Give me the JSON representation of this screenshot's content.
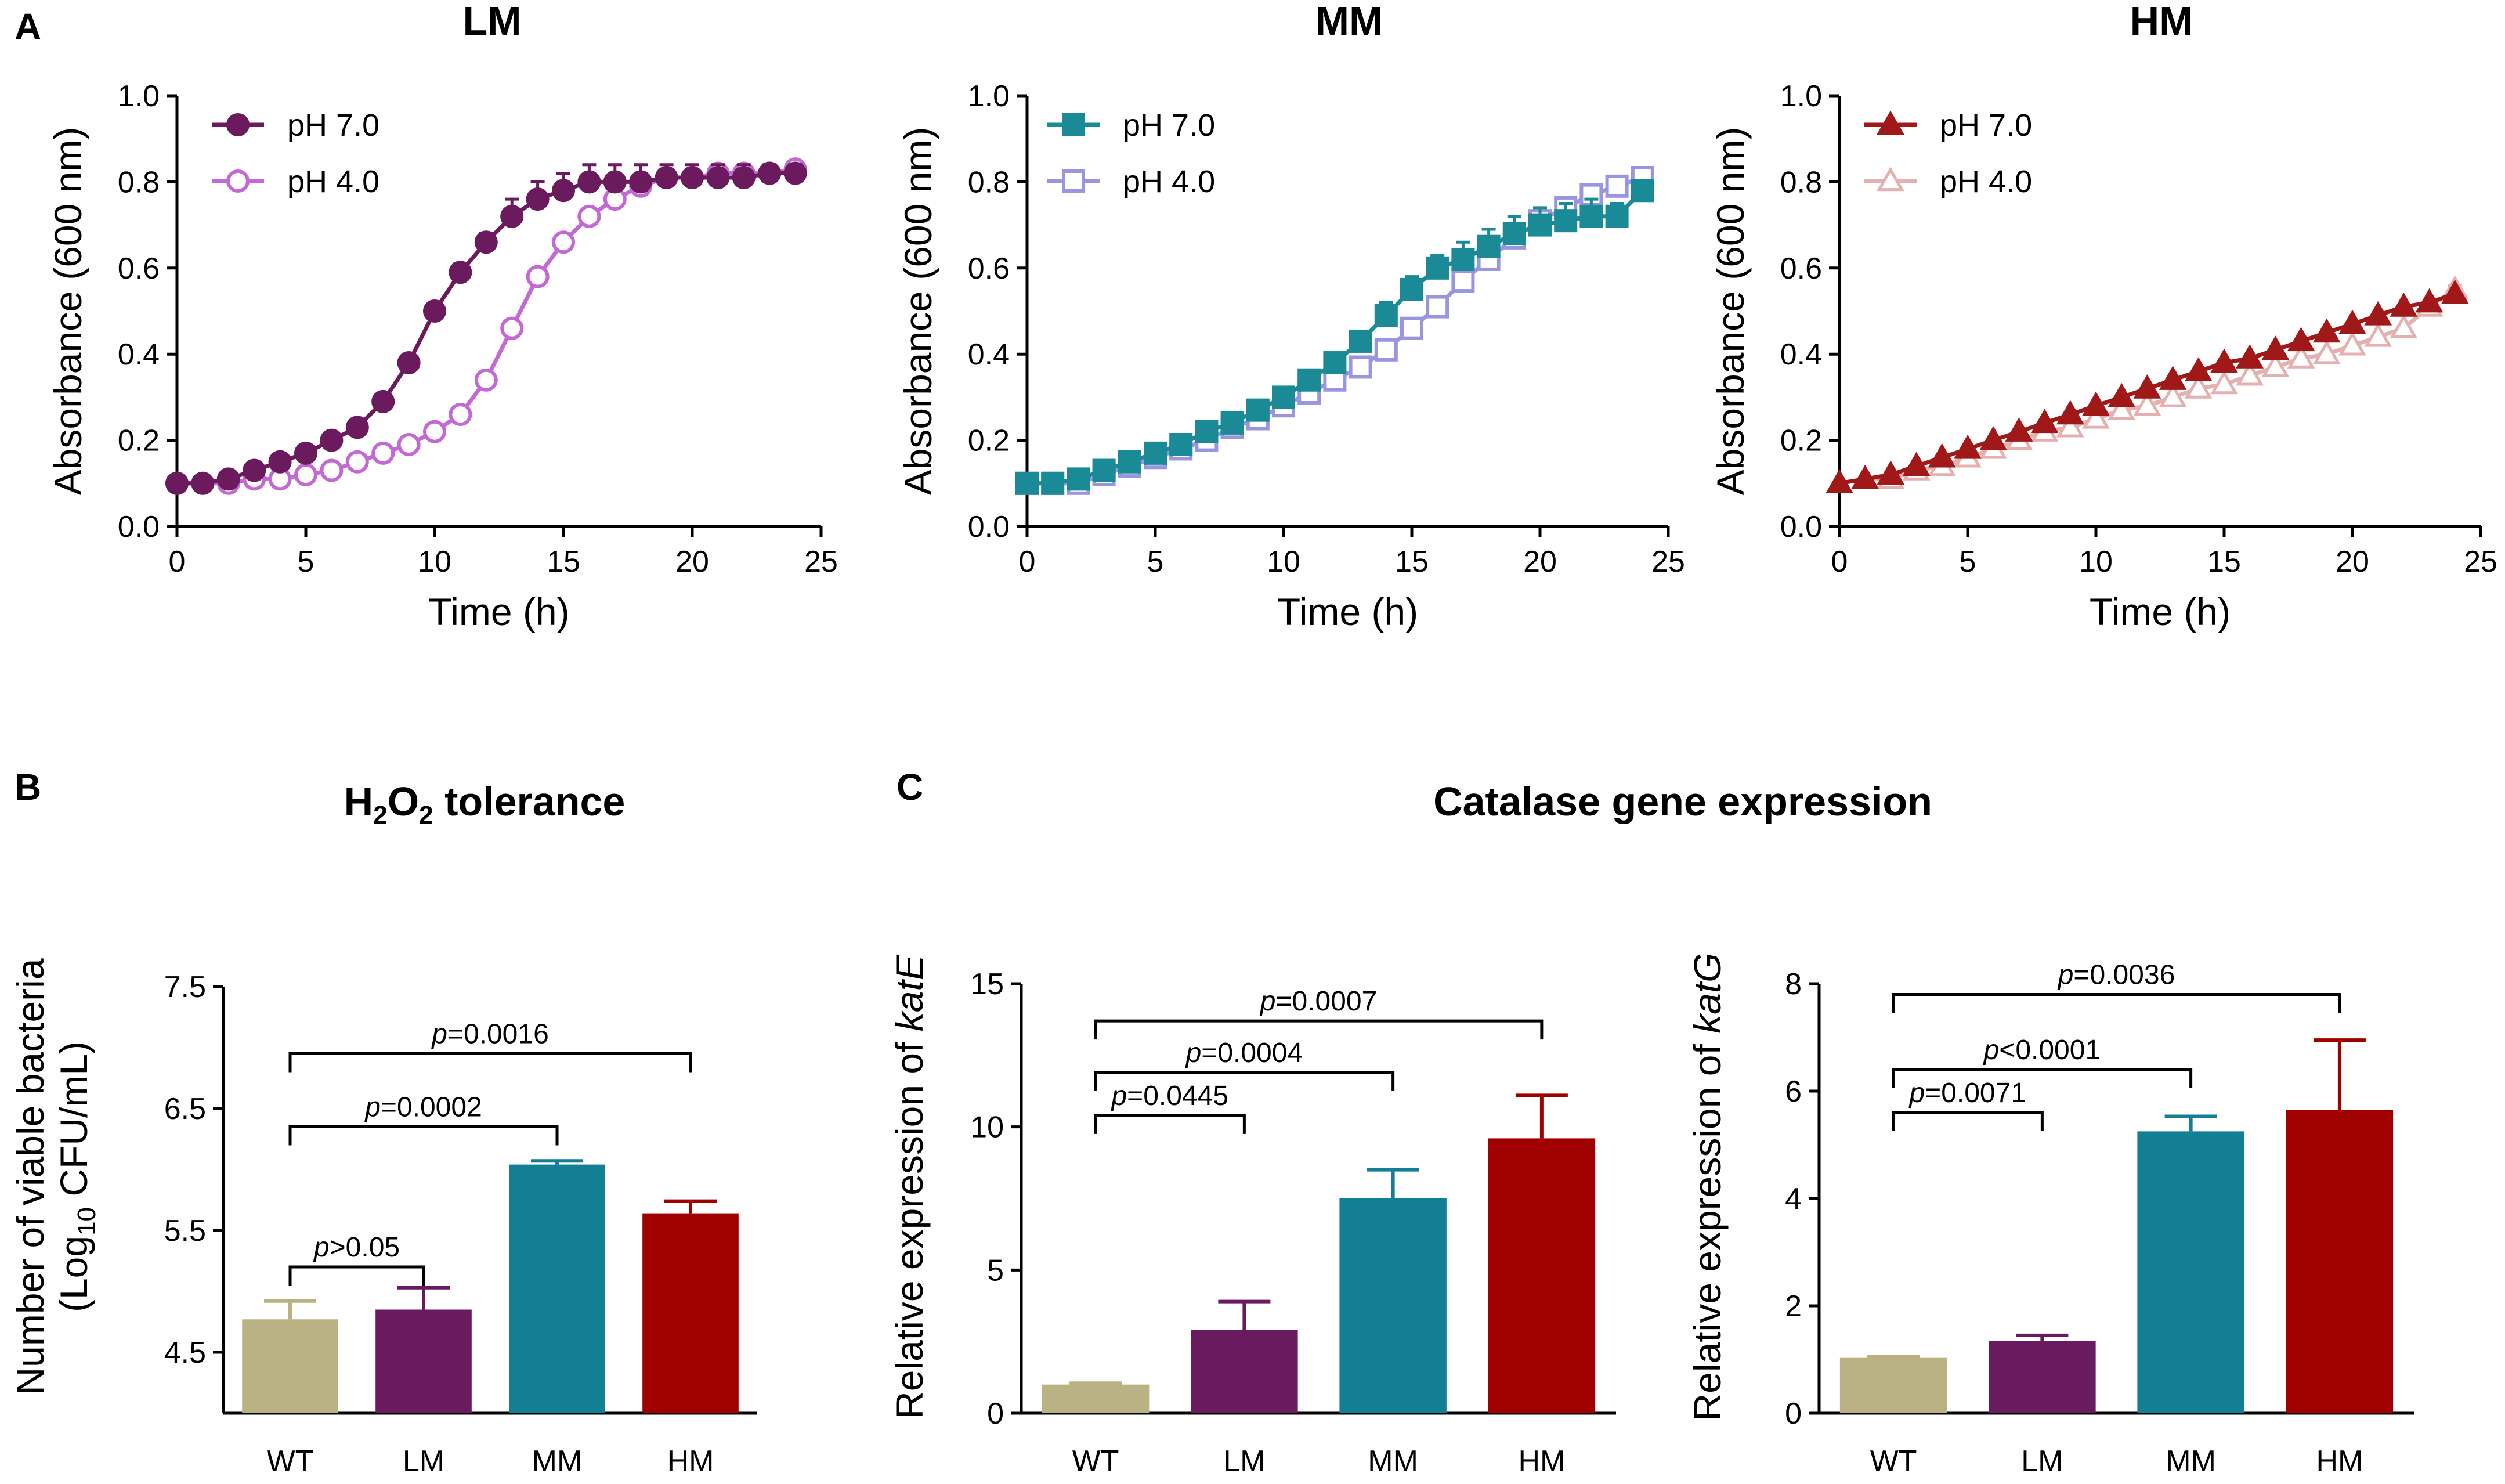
{
  "chart_data": [
    {
      "id": "A-LM",
      "panel": "A",
      "type": "line",
      "title": "LM",
      "xlabel": "Time (h)",
      "ylabel": "Absorbance (600 nm)",
      "xlim": [
        0,
        25
      ],
      "ylim": [
        0,
        1.0
      ],
      "xticks": [
        "0",
        "5",
        "10",
        "15",
        "20",
        "25"
      ],
      "yticks": [
        "0.0",
        "0.2",
        "0.4",
        "0.6",
        "0.8",
        "1.0"
      ],
      "series": [
        {
          "name": "pH 7.0",
          "color": "#6b1a5e",
          "marker": "circle",
          "filled": true,
          "x": [
            0,
            1,
            2,
            3,
            4,
            5,
            6,
            7,
            8,
            9,
            10,
            11,
            12,
            13,
            14,
            15,
            16,
            17,
            18,
            19,
            20,
            21,
            22,
            23,
            24
          ],
          "y": [
            0.1,
            0.1,
            0.11,
            0.13,
            0.15,
            0.17,
            0.2,
            0.23,
            0.29,
            0.38,
            0.5,
            0.59,
            0.66,
            0.72,
            0.76,
            0.78,
            0.8,
            0.8,
            0.8,
            0.81,
            0.81,
            0.81,
            0.81,
            0.82,
            0.82
          ],
          "err": [
            0,
            0,
            0,
            0,
            0,
            0,
            0,
            0,
            0.01,
            0.01,
            0.02,
            0.02,
            0.02,
            0.04,
            0.04,
            0.04,
            0.04,
            0.04,
            0.04,
            0.03,
            0.03,
            0.03,
            0.03,
            0.02,
            0.02
          ]
        },
        {
          "name": "pH 4.0",
          "color": "#c468d6",
          "marker": "circle",
          "filled": false,
          "x": [
            0,
            1,
            2,
            3,
            4,
            5,
            6,
            7,
            8,
            9,
            10,
            11,
            12,
            13,
            14,
            15,
            16,
            17,
            18,
            19,
            20,
            21,
            22,
            23,
            24
          ],
          "y": [
            0.1,
            0.1,
            0.1,
            0.11,
            0.11,
            0.12,
            0.13,
            0.15,
            0.17,
            0.19,
            0.22,
            0.26,
            0.34,
            0.46,
            0.58,
            0.66,
            0.72,
            0.76,
            0.79,
            0.81,
            0.81,
            0.82,
            0.82,
            0.82,
            0.83
          ],
          "err": [
            0,
            0,
            0,
            0,
            0,
            0,
            0,
            0,
            0,
            0,
            0,
            0,
            0,
            0,
            0,
            0,
            0,
            0,
            0,
            0,
            0,
            0,
            0,
            0,
            0
          ]
        }
      ]
    },
    {
      "id": "A-MM",
      "panel": "",
      "type": "line",
      "title": "MM",
      "xlabel": "Time (h)",
      "ylabel": "Absorbance (600 nm)",
      "xlim": [
        0,
        25
      ],
      "ylim": [
        0,
        1.0
      ],
      "xticks": [
        "0",
        "5",
        "10",
        "15",
        "20",
        "25"
      ],
      "yticks": [
        "0.0",
        "0.2",
        "0.4",
        "0.6",
        "0.8",
        "1.0"
      ],
      "series": [
        {
          "name": "pH 7.0",
          "color": "#1a8a96",
          "marker": "square",
          "filled": true,
          "x": [
            0,
            1,
            2,
            3,
            4,
            5,
            6,
            7,
            8,
            9,
            10,
            11,
            12,
            13,
            14,
            15,
            16,
            17,
            18,
            19,
            20,
            21,
            22,
            23,
            24
          ],
          "y": [
            0.1,
            0.1,
            0.11,
            0.13,
            0.15,
            0.17,
            0.19,
            0.22,
            0.24,
            0.27,
            0.3,
            0.34,
            0.38,
            0.43,
            0.49,
            0.55,
            0.6,
            0.62,
            0.65,
            0.68,
            0.7,
            0.71,
            0.72,
            0.72,
            0.78
          ],
          "err": [
            0,
            0,
            0,
            0,
            0,
            0,
            0,
            0,
            0,
            0,
            0.01,
            0.01,
            0.02,
            0.02,
            0.03,
            0.03,
            0.03,
            0.04,
            0.04,
            0.04,
            0.04,
            0.04,
            0.04,
            0.03,
            0.02
          ]
        },
        {
          "name": "pH 4.0",
          "color": "#9a95e0",
          "marker": "square",
          "filled": false,
          "x": [
            0,
            1,
            2,
            3,
            4,
            5,
            6,
            7,
            8,
            9,
            10,
            11,
            12,
            13,
            14,
            15,
            16,
            17,
            18,
            19,
            20,
            21,
            22,
            23,
            24
          ],
          "y": [
            0.1,
            0.1,
            0.1,
            0.12,
            0.14,
            0.16,
            0.18,
            0.2,
            0.23,
            0.25,
            0.28,
            0.31,
            0.34,
            0.37,
            0.41,
            0.46,
            0.51,
            0.57,
            0.62,
            0.67,
            0.71,
            0.74,
            0.77,
            0.79,
            0.81
          ],
          "err": [
            0,
            0,
            0,
            0,
            0,
            0,
            0,
            0,
            0,
            0,
            0,
            0,
            0,
            0,
            0,
            0,
            0,
            0,
            0,
            0,
            0,
            0,
            0,
            0,
            0
          ]
        }
      ]
    },
    {
      "id": "A-HM",
      "panel": "",
      "type": "line",
      "title": "HM",
      "xlabel": "Time (h)",
      "ylabel": "Absorbance (600 nm)",
      "xlim": [
        0,
        25
      ],
      "ylim": [
        0,
        1.0
      ],
      "xticks": [
        "0",
        "5",
        "10",
        "15",
        "20",
        "25"
      ],
      "yticks": [
        "0.0",
        "0.2",
        "0.4",
        "0.6",
        "0.8",
        "1.0"
      ],
      "series": [
        {
          "name": "pH 7.0",
          "color": "#a01818",
          "marker": "triangle",
          "filled": true,
          "x": [
            0,
            1,
            2,
            3,
            4,
            5,
            6,
            7,
            8,
            9,
            10,
            11,
            12,
            13,
            14,
            15,
            16,
            17,
            18,
            19,
            20,
            21,
            22,
            23,
            24
          ],
          "y": [
            0.1,
            0.11,
            0.12,
            0.14,
            0.16,
            0.18,
            0.2,
            0.22,
            0.24,
            0.26,
            0.28,
            0.3,
            0.32,
            0.34,
            0.36,
            0.38,
            0.39,
            0.41,
            0.43,
            0.45,
            0.47,
            0.49,
            0.51,
            0.52,
            0.54
          ],
          "err": [
            0,
            0,
            0,
            0,
            0,
            0,
            0,
            0,
            0,
            0,
            0,
            0,
            0,
            0,
            0,
            0,
            0,
            0,
            0,
            0,
            0,
            0,
            0,
            0,
            0
          ]
        },
        {
          "name": "pH 4.0",
          "color": "#e4b0b0",
          "marker": "triangle",
          "filled": false,
          "x": [
            0,
            1,
            2,
            3,
            4,
            5,
            6,
            7,
            8,
            9,
            10,
            11,
            12,
            13,
            14,
            15,
            16,
            17,
            18,
            19,
            20,
            21,
            22,
            23,
            24
          ],
          "y": [
            0.1,
            0.11,
            0.11,
            0.13,
            0.14,
            0.16,
            0.18,
            0.2,
            0.22,
            0.23,
            0.25,
            0.27,
            0.28,
            0.3,
            0.32,
            0.33,
            0.35,
            0.37,
            0.39,
            0.4,
            0.42,
            0.44,
            0.46,
            0.51,
            0.55
          ],
          "err": [
            0,
            0,
            0,
            0,
            0,
            0,
            0,
            0,
            0,
            0,
            0,
            0,
            0,
            0,
            0,
            0,
            0,
            0,
            0,
            0,
            0,
            0,
            0,
            0,
            0.01
          ]
        }
      ]
    },
    {
      "id": "B",
      "panel": "B",
      "type": "bar",
      "title_main": "H",
      "title_sub1": "2",
      "title_mid": "O",
      "title_sub2": "2",
      "title_tail": " tolerance",
      "ylabel_line1": "Number of viable bacteria",
      "ylabel_line2_pre": "(Log",
      "ylabel_line2_sub": "10",
      "ylabel_line2_post": " CFU/mL)",
      "ylim": [
        4.0,
        7.5
      ],
      "yticks": [
        {
          "v": 4.5,
          "label": "4.5"
        },
        {
          "v": 5.5,
          "label": "5.5"
        },
        {
          "v": 6.5,
          "label": "6.5"
        },
        {
          "v": 7.5,
          "label": "7.5"
        }
      ],
      "categories": [
        "WT",
        "LM",
        "MM",
        "HM"
      ],
      "values": [
        4.77,
        4.85,
        6.04,
        5.64
      ],
      "errors": [
        0.15,
        0.18,
        0.03,
        0.1
      ],
      "colors": [
        "#bab283",
        "#6a1a5e",
        "#137f94",
        "#a00000"
      ],
      "brackets": [
        {
          "from": 0,
          "to": 1,
          "y": 5.2,
          "pvar": "p",
          "ptext": ">0.05"
        },
        {
          "from": 0,
          "to": 2,
          "y": 6.35,
          "pvar": "p",
          "ptext": "=0.0002"
        },
        {
          "from": 0,
          "to": 3,
          "y": 6.95,
          "pvar": "p",
          "ptext": "=0.0016"
        }
      ]
    },
    {
      "id": "C-katE",
      "panel": "C",
      "type": "bar",
      "group_title": "Catalase gene expression",
      "ylabel_pre": "Relative expression of ",
      "ylabel_gene": "katE",
      "ylim": [
        0,
        15
      ],
      "yticks": [
        {
          "v": 0,
          "label": "0"
        },
        {
          "v": 5,
          "label": "5"
        },
        {
          "v": 10,
          "label": "10"
        },
        {
          "v": 15,
          "label": "15"
        }
      ],
      "categories": [
        "WT",
        "LM",
        "MM",
        "HM"
      ],
      "values": [
        1.0,
        2.9,
        7.5,
        9.6
      ],
      "errors": [
        0.05,
        1.0,
        1.0,
        1.5
      ],
      "colors": [
        "#bab283",
        "#6a1a5e",
        "#137f94",
        "#a00000"
      ],
      "brackets": [
        {
          "from": 0,
          "to": 1,
          "y": 10.4,
          "pvar": "p",
          "ptext": "=0.0445"
        },
        {
          "from": 0,
          "to": 2,
          "y": 11.9,
          "pvar": "p",
          "ptext": "=0.0004"
        },
        {
          "from": 0,
          "to": 3,
          "y": 13.7,
          "pvar": "p",
          "ptext": "=0.0007"
        }
      ]
    },
    {
      "id": "C-katG",
      "panel": "",
      "type": "bar",
      "ylabel_pre": "Relative expression of ",
      "ylabel_gene": "katG",
      "ylim": [
        0,
        8
      ],
      "yticks": [
        {
          "v": 0,
          "label": "0"
        },
        {
          "v": 2,
          "label": "2"
        },
        {
          "v": 4,
          "label": "4"
        },
        {
          "v": 6,
          "label": "6"
        },
        {
          "v": 8,
          "label": "8"
        }
      ],
      "categories": [
        "WT",
        "LM",
        "MM",
        "HM"
      ],
      "values": [
        1.03,
        1.35,
        5.25,
        5.65
      ],
      "errors": [
        0.03,
        0.1,
        0.28,
        1.3
      ],
      "colors": [
        "#bab283",
        "#6a1a5e",
        "#137f94",
        "#a00000"
      ],
      "brackets": [
        {
          "from": 0,
          "to": 1,
          "y": 5.6,
          "pvar": "p",
          "ptext": "=0.0071"
        },
        {
          "from": 0,
          "to": 2,
          "y": 6.4,
          "pvar": "p",
          "ptext": "<0.0001"
        },
        {
          "from": 0,
          "to": 3,
          "y": 7.8,
          "pvar": "p",
          "ptext": "=0.0036"
        }
      ]
    }
  ]
}
